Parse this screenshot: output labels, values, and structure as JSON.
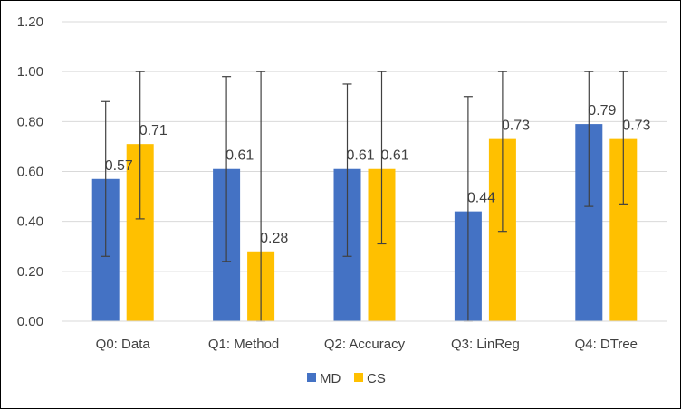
{
  "chart_data": {
    "type": "bar",
    "title": "",
    "xlabel": "",
    "ylabel": "",
    "categories": [
      "Q0: Data",
      "Q1: Method",
      "Q2: Accuracy",
      "Q3: LinReg",
      "Q4: DTree"
    ],
    "ylim": [
      0,
      1.2
    ],
    "yticks": [
      "0.00",
      "0.20",
      "0.40",
      "0.60",
      "0.80",
      "1.00",
      "1.20"
    ],
    "grid": true,
    "legend_position": "bottom",
    "series": [
      {
        "name": "MD",
        "color": "#4472C4",
        "values": [
          0.57,
          0.61,
          0.61,
          0.44,
          0.79
        ],
        "labels": [
          "0.57",
          "0.61",
          "0.61",
          "0.44",
          "0.79"
        ],
        "error_low": [
          0.26,
          0.24,
          0.26,
          0.0,
          0.46
        ],
        "error_high": [
          0.88,
          0.98,
          0.95,
          0.9,
          1.0
        ]
      },
      {
        "name": "CS",
        "color": "#FFC000",
        "values": [
          0.71,
          0.28,
          0.61,
          0.73,
          0.73
        ],
        "labels": [
          "0.71",
          "0.28",
          "0.61",
          "0.73",
          "0.73"
        ],
        "error_low": [
          0.41,
          0.0,
          0.31,
          0.36,
          0.47
        ],
        "error_high": [
          1.0,
          1.0,
          1.0,
          1.0,
          1.0
        ]
      }
    ]
  }
}
